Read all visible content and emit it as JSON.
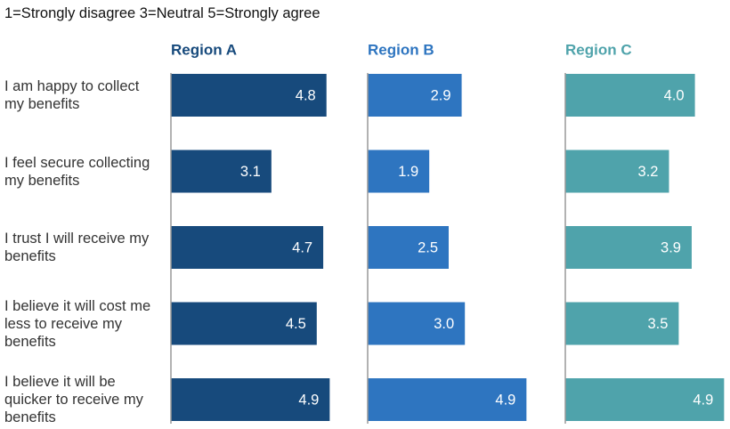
{
  "chart_data": {
    "type": "bar",
    "subtitle": "1=Strongly disagree  3=Neutral  5=Strongly agree",
    "categories": [
      "I am happy to collect my benefits",
      "I feel secure collecting my benefits",
      "I trust I will receive my benefits",
      "I believe it will cost me less to receive my benefits",
      "I believe it will be quicker to receive my benefits"
    ],
    "xlim": [
      0,
      5
    ],
    "series": [
      {
        "name": "Region A",
        "color": "#174a7c",
        "values": [
          4.8,
          3.1,
          4.7,
          4.5,
          4.9
        ],
        "value_labels": [
          "4.8",
          "3.1",
          "4.7",
          "4.5",
          "4.9"
        ]
      },
      {
        "name": "Region B",
        "color": "#2e75c0",
        "values": [
          2.9,
          1.9,
          2.5,
          3.0,
          4.9
        ],
        "value_labels": [
          "2.9",
          "1.9",
          "2.5",
          "3.0",
          "4.9"
        ]
      },
      {
        "name": "Region C",
        "color": "#4fa3ab",
        "values": [
          4.0,
          3.2,
          3.9,
          3.5,
          4.9
        ],
        "value_labels": [
          "4.0",
          "3.2",
          "3.9",
          "3.5",
          "4.9"
        ]
      }
    ]
  }
}
